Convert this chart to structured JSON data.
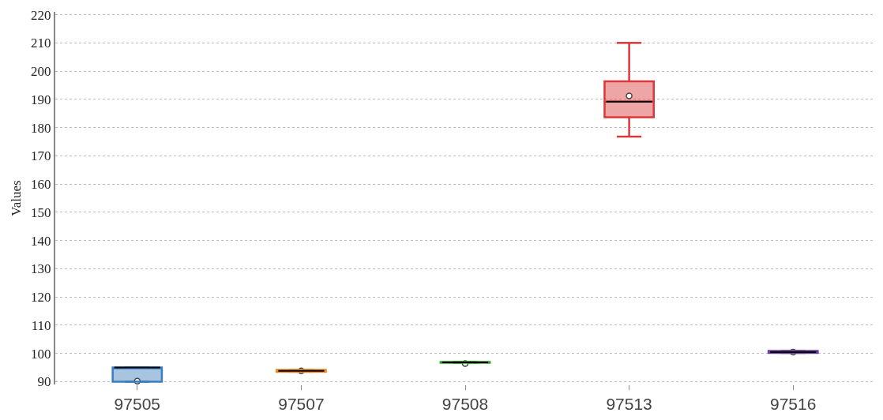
{
  "chart_data": {
    "type": "box",
    "ylabel": "Values",
    "categories": [
      "97505",
      "97507",
      "97508",
      "97513",
      "97516"
    ],
    "colors": [
      "#3b7dbd",
      "#e6892a",
      "#2ca02c",
      "#d9383a",
      "#6a3d9a"
    ],
    "boxes": [
      {
        "low": 90,
        "q1": 90,
        "median": 95,
        "q3": 95,
        "high": 95,
        "mean": 90.2
      },
      {
        "low": 93.5,
        "q1": 93.5,
        "median": 93.8,
        "q3": 94.2,
        "high": 94.2,
        "mean": 93.8
      },
      {
        "low": 96.7,
        "q1": 96.7,
        "median": 96.8,
        "q3": 97,
        "high": 97,
        "mean": 96.4
      },
      {
        "low": 176.8,
        "q1": 183.7,
        "median": 189.2,
        "q3": 196.4,
        "high": 210,
        "mean": 191.2
      },
      {
        "low": 100.2,
        "q1": 100.2,
        "median": 100.5,
        "q3": 100.9,
        "high": 100.9,
        "mean": 100.5
      }
    ],
    "ylim": [
      89,
      221
    ],
    "yticks": [
      90,
      100,
      110,
      120,
      130,
      140,
      150,
      160,
      170,
      180,
      190,
      200,
      210,
      220
    ],
    "grid": "y",
    "legend": false
  }
}
